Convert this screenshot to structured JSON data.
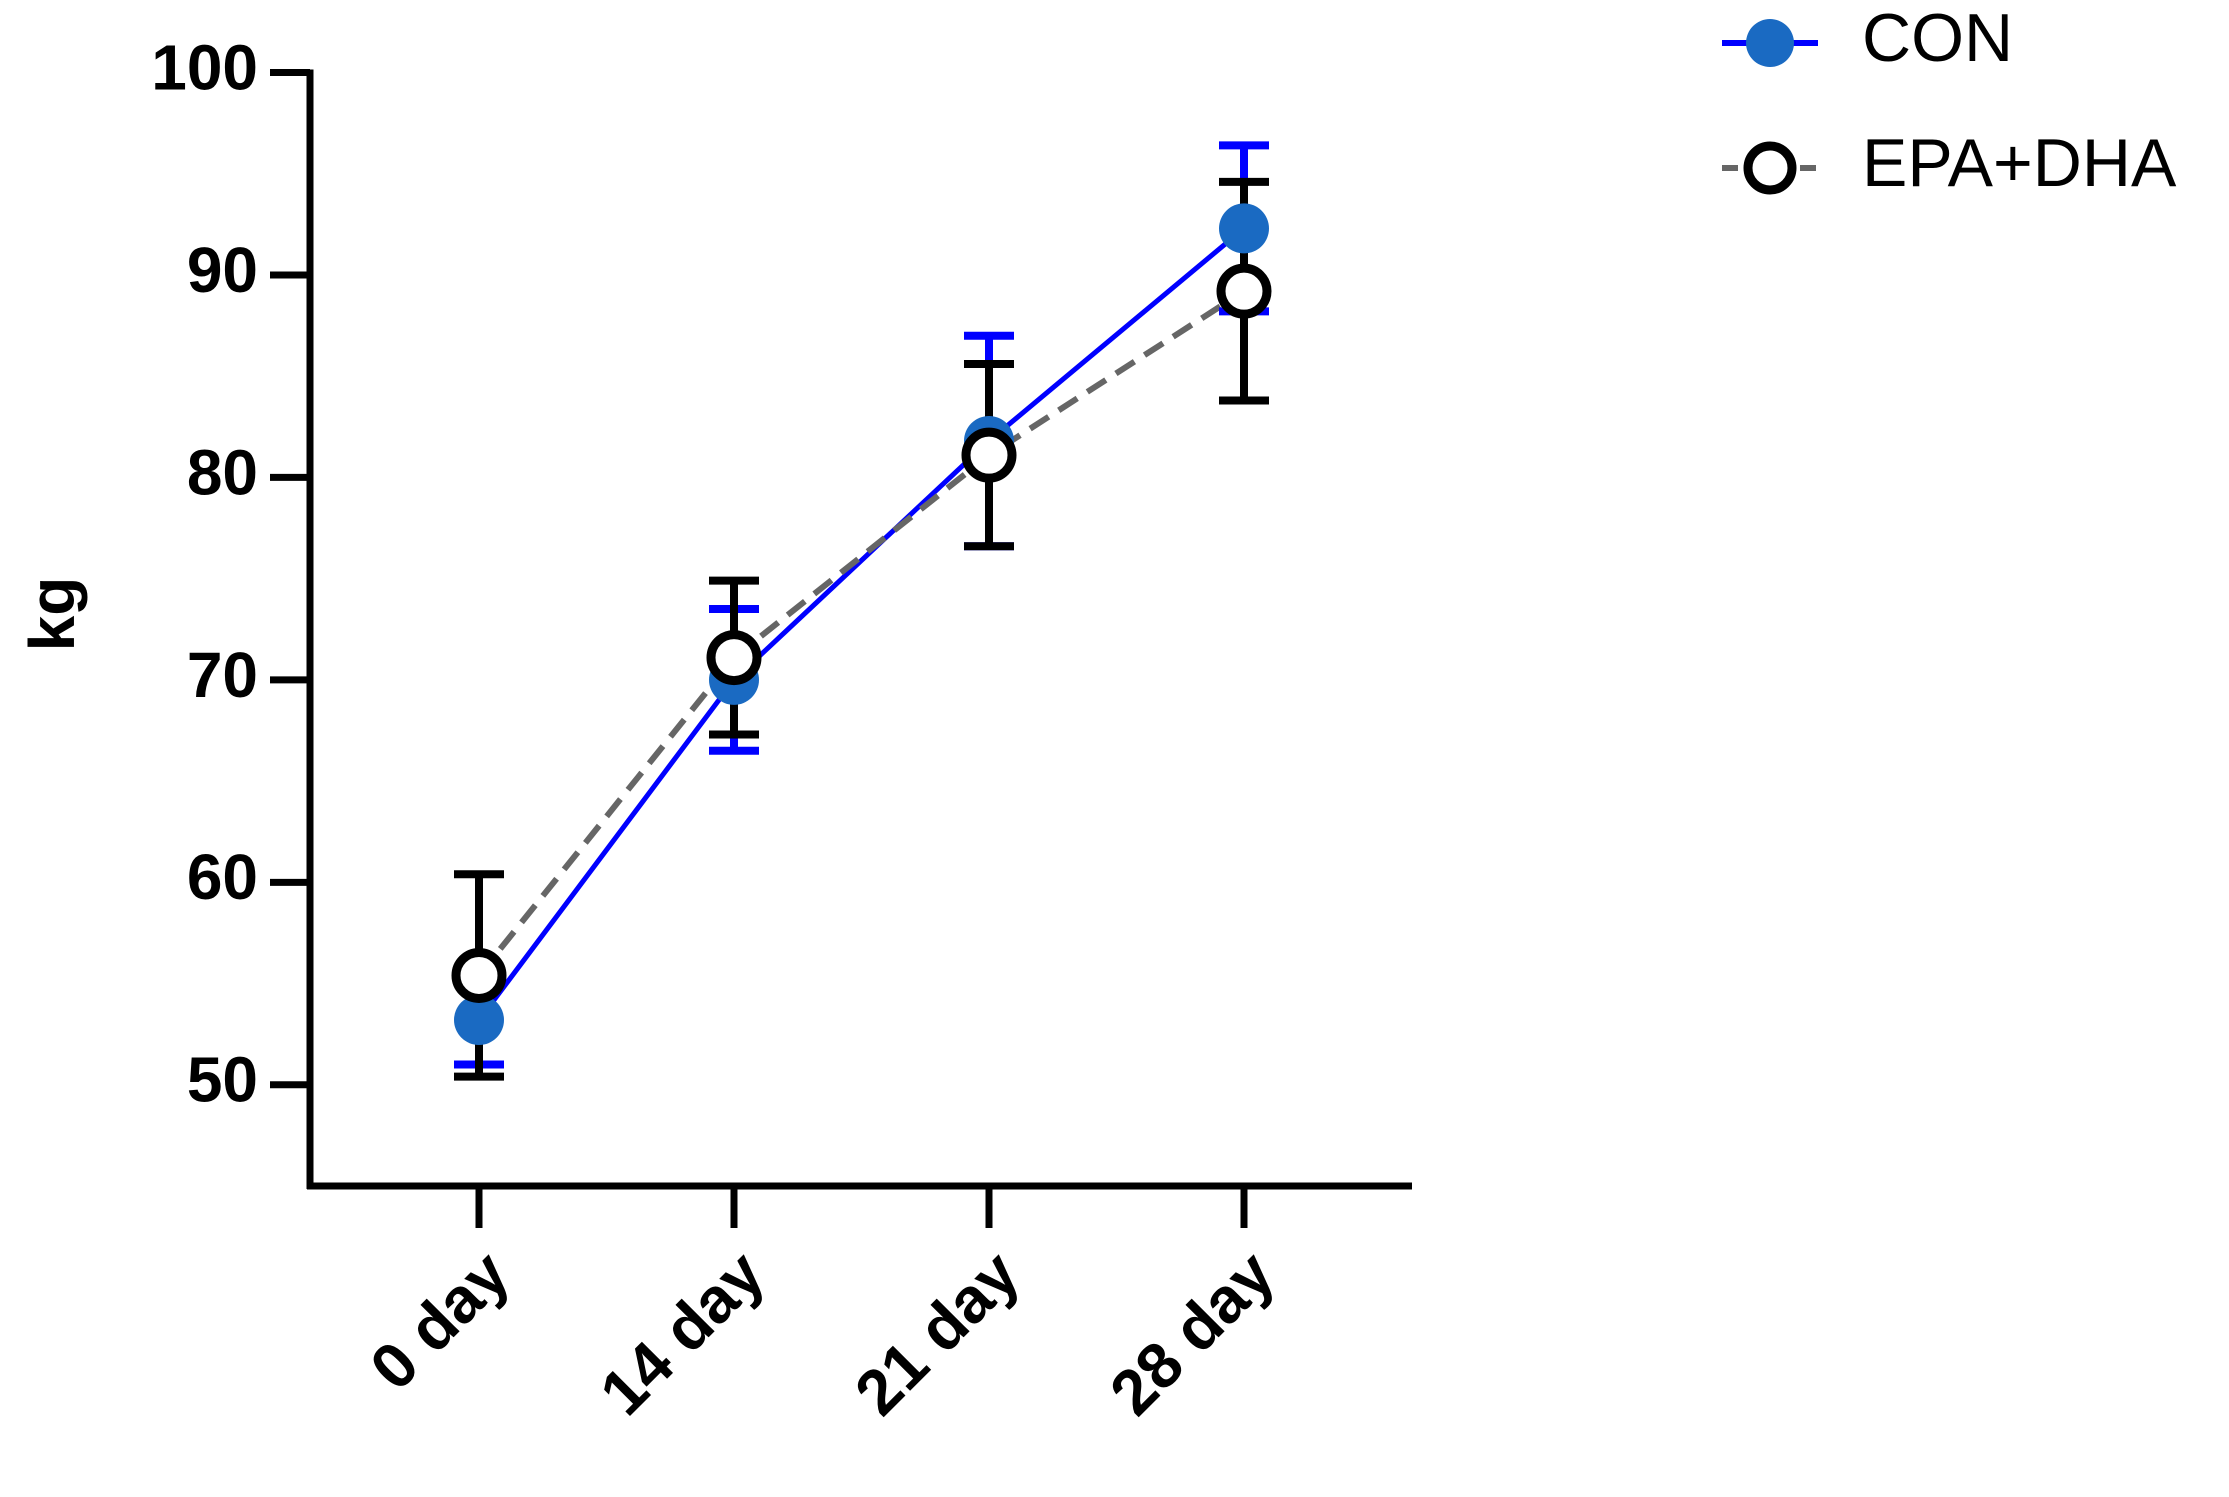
{
  "chart_data": {
    "type": "line",
    "y_label": "kg",
    "categories": [
      "0 day",
      "14 day",
      "21 day",
      "28 day"
    ],
    "series": [
      {
        "name": "CON",
        "color": "#0000ff",
        "line_color": "#0000ff",
        "marker_fill": "#1a6ac2",
        "dashed": false,
        "values": [
          53.2,
          70.0,
          81.8,
          92.3
        ],
        "errors": [
          2.2,
          3.5,
          5.2,
          4.1
        ]
      },
      {
        "name": "EPA+DHA",
        "color": "#000000",
        "line_color": "#666666",
        "marker_fill": "#ffffff",
        "dashed": true,
        "values": [
          55.4,
          71.1,
          81.1,
          89.2
        ],
        "errors": [
          5.0,
          3.8,
          4.5,
          5.4
        ]
      }
    ],
    "ylim": [
      45,
      100
    ],
    "yticks": [
      50,
      60,
      70,
      80,
      90,
      100
    ],
    "legend": "top-right"
  }
}
